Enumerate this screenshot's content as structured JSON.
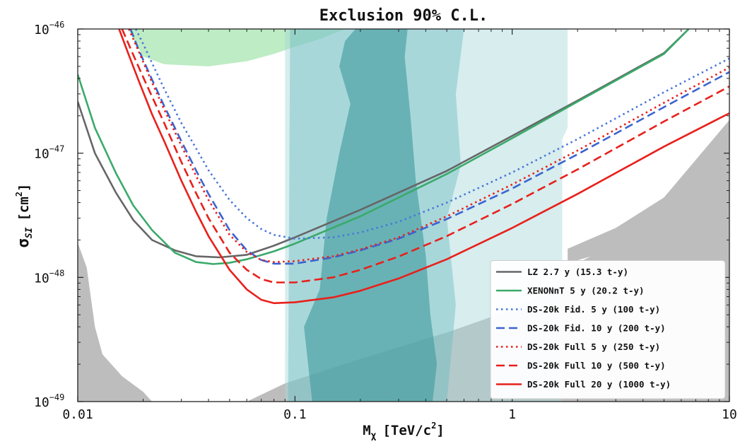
{
  "chart_data": {
    "type": "line",
    "title": "Exclusion 90% C.L.",
    "xlabel": {
      "base": "M",
      "sub": "χ",
      "unit_pre": "[TeV/c",
      "unit_sup": "2",
      "unit_post": "]"
    },
    "ylabel": {
      "base": "σ",
      "sub": "SI",
      "unit_pre": "[cm",
      "unit_sup": "2",
      "unit_post": "]"
    },
    "x_scale": "log",
    "y_scale": "log",
    "xlim": [
      0.01,
      10
    ],
    "ylim": [
      1e-49,
      1e-46
    ],
    "x_ticks": [
      {
        "value": 0.01,
        "label": "0.01"
      },
      {
        "value": 0.1,
        "label": "0.1"
      },
      {
        "value": 1,
        "label": "1"
      },
      {
        "value": 10,
        "label": "10"
      }
    ],
    "y_ticks": [
      {
        "value": 1e-46,
        "base": "10",
        "exp": "−46"
      },
      {
        "value": 1e-47,
        "base": "10",
        "exp": "−47"
      },
      {
        "value": 1e-48,
        "base": "10",
        "exp": "−48"
      },
      {
        "value": 1e-49,
        "base": "10",
        "exp": "−49"
      }
    ],
    "legend_position": "lower-right",
    "series": [
      {
        "name": "LZ 2.7 y (15.3 t-y)",
        "color": "#666666",
        "style": "solid",
        "x": [
          0.01,
          0.012,
          0.015,
          0.018,
          0.022,
          0.028,
          0.035,
          0.045,
          0.06,
          0.08,
          0.1,
          0.2,
          0.5,
          1,
          2,
          5,
          6.5
        ],
        "y": [
          2.6e-47,
          1e-47,
          4.8e-48,
          2.9e-48,
          2e-48,
          1.65e-48,
          1.48e-48,
          1.45e-48,
          1.52e-48,
          1.8e-48,
          2.1e-48,
          3.5e-48,
          7.2e-48,
          1.38e-47,
          2.65e-47,
          6.4e-47,
          1e-46
        ]
      },
      {
        "name": "XENONnT 5 y (20.2 t-y)",
        "color": "#3aaa6a",
        "style": "solid",
        "x": [
          0.01,
          0.012,
          0.015,
          0.018,
          0.022,
          0.028,
          0.035,
          0.042,
          0.05,
          0.06,
          0.08,
          0.1,
          0.2,
          0.5,
          1,
          2,
          5,
          6.5
        ],
        "y": [
          4.3e-47,
          1.6e-47,
          6.9e-48,
          3.8e-48,
          2.4e-48,
          1.58e-48,
          1.33e-48,
          1.28e-48,
          1.31e-48,
          1.4e-48,
          1.62e-48,
          1.87e-48,
          3.1e-48,
          6.8e-48,
          1.32e-47,
          2.6e-47,
          6.3e-47,
          1e-46
        ]
      },
      {
        "name": "DS-20k Fid. 5 y (100 t-y)",
        "color": "#4a78d8",
        "style": "dotted",
        "x": [
          0.0185,
          0.02,
          0.022,
          0.025,
          0.03,
          0.035,
          0.04,
          0.05,
          0.06,
          0.07,
          0.08,
          0.1,
          0.15,
          0.2,
          0.3,
          0.5,
          1,
          2,
          5,
          10
        ],
        "y": [
          1e-46,
          7.6e-47,
          5.3e-47,
          3.3e-47,
          1.75e-47,
          1.1e-47,
          7.3e-48,
          4.2e-48,
          3e-48,
          2.45e-48,
          2.2e-48,
          2.05e-48,
          2.1e-48,
          2.3e-48,
          2.8e-48,
          4e-48,
          7e-48,
          1.3e-47,
          3.1e-47,
          5.8e-47
        ]
      },
      {
        "name": "DS-20k Fid. 10 y (200 t-y)",
        "color": "#3a64d0",
        "style": "dashed",
        "x": [
          0.0175,
          0.019,
          0.022,
          0.025,
          0.03,
          0.035,
          0.04,
          0.05,
          0.06,
          0.07,
          0.08,
          0.1,
          0.15,
          0.2,
          0.3,
          0.5,
          1,
          2,
          5,
          10
        ],
        "y": [
          1e-46,
          6.9e-47,
          3.9e-47,
          2.4e-47,
          1.25e-47,
          7.3e-48,
          4.7e-48,
          2.4e-48,
          1.65e-48,
          1.38e-48,
          1.29e-48,
          1.29e-48,
          1.45e-48,
          1.65e-48,
          2.05e-48,
          2.95e-48,
          5.2e-48,
          9.8e-48,
          2.35e-47,
          4.5e-47
        ]
      },
      {
        "name": "DS-20k Full 5 y (250 t-y)",
        "color": "#e8201b",
        "style": "dotted",
        "x": [
          0.0172,
          0.019,
          0.022,
          0.025,
          0.03,
          0.035,
          0.04,
          0.05,
          0.06,
          0.07,
          0.08,
          0.1,
          0.15,
          0.2,
          0.3,
          0.5,
          1,
          2,
          5,
          10
        ],
        "y": [
          1e-46,
          6.7e-47,
          3.7e-47,
          2.25e-47,
          1.15e-47,
          6.6e-48,
          4.2e-48,
          2.2e-48,
          1.6e-48,
          1.38e-48,
          1.33e-48,
          1.35e-48,
          1.48e-48,
          1.68e-48,
          2.1e-48,
          3.1e-48,
          5.6e-48,
          1.05e-47,
          2.55e-47,
          4.9e-47
        ]
      },
      {
        "name": "DS-20k Full 10 y (500 t-y)",
        "color": "#e8201b",
        "style": "dashed",
        "x": [
          0.016,
          0.018,
          0.02,
          0.022,
          0.025,
          0.03,
          0.035,
          0.04,
          0.05,
          0.06,
          0.07,
          0.08,
          0.1,
          0.15,
          0.2,
          0.3,
          0.5,
          1,
          2,
          5,
          10
        ],
        "y": [
          1e-46,
          6.2e-47,
          4.1e-47,
          2.85e-47,
          1.75e-47,
          8.5e-48,
          4.8e-48,
          3e-48,
          1.58e-48,
          1.15e-48,
          9.7e-49,
          9.1e-49,
          9.1e-49,
          1e-48,
          1.15e-48,
          1.47e-48,
          2.15e-48,
          3.9e-48,
          7.4e-48,
          1.8e-47,
          3.45e-47
        ]
      },
      {
        "name": "DS-20k Full 20 y (1000 t-y)",
        "color": "#e8201b",
        "style": "solid",
        "x": [
          0.0155,
          0.017,
          0.019,
          0.022,
          0.025,
          0.03,
          0.035,
          0.04,
          0.05,
          0.06,
          0.07,
          0.08,
          0.1,
          0.15,
          0.2,
          0.3,
          0.5,
          1,
          2,
          5,
          10
        ],
        "y": [
          1e-46,
          6.5e-47,
          3.9e-47,
          2.05e-47,
          1.25e-47,
          6e-48,
          3.4e-48,
          2.15e-48,
          1.15e-48,
          8e-49,
          6.6e-49,
          6.2e-49,
          6.3e-49,
          6.9e-49,
          7.8e-49,
          9.8e-49,
          1.4e-48,
          2.5e-48,
          4.7e-48,
          1.13e-47,
          2.1e-47
        ]
      }
    ],
    "shaded_regions": [
      {
        "name": "excluded-green-region",
        "color": "#a8e6b0",
        "opacity": 0.75,
        "points": [
          [
            0.017,
            1e-46
          ],
          [
            0.02,
            6e-47
          ],
          [
            0.025,
            5.2e-47
          ],
          [
            0.04,
            5e-47
          ],
          [
            0.06,
            5.5e-47
          ],
          [
            0.08,
            6.3e-47
          ],
          [
            0.1,
            7.2e-47
          ],
          [
            0.13,
            8.3e-47
          ],
          [
            0.17,
            1e-46
          ]
        ]
      },
      {
        "name": "neutrino-fog-gray-region",
        "color": "#bdbdbd",
        "opacity": 1,
        "points": [
          [
            0.01,
            1e-49
          ],
          [
            0.01,
            1.9e-48
          ],
          [
            0.011,
            1.2e-48
          ],
          [
            0.012,
            4e-49
          ],
          [
            0.013,
            2.4e-49
          ],
          [
            0.016,
            1.6e-49
          ],
          [
            0.02,
            1.2e-49
          ],
          [
            0.022,
            1e-49
          ],
          [
            0.06,
            1e-49
          ],
          [
            0.09,
            1.4e-49
          ],
          [
            0.2,
            2.2e-49
          ],
          [
            0.5,
            3.6e-49
          ],
          [
            1,
            5.5e-49
          ],
          [
            1.5,
            8e-49
          ],
          [
            2,
            1.3e-48
          ],
          [
            5,
            3e-48
          ],
          [
            10,
            5.8e-48
          ],
          [
            10,
            1e-49
          ]
        ]
      },
      {
        "name": "gray-upper-band",
        "color": "#bdbdbd",
        "opacity": 1,
        "points": [
          [
            1.8,
            1.7e-48
          ],
          [
            3,
            2.5e-48
          ],
          [
            5,
            4.4e-48
          ],
          [
            10,
            1.85e-47
          ],
          [
            10,
            2.5e-48
          ],
          [
            5,
            2.2e-48
          ],
          [
            1.8,
            1.3e-48
          ]
        ]
      },
      {
        "name": "light-teal-outer-region",
        "color": "#a6d8da",
        "opacity": 0.45,
        "points": [
          [
            0.09,
            1e-49
          ],
          [
            0.09,
            1e-46
          ],
          [
            1.8,
            1e-46
          ],
          [
            1.8,
            1.6e-47
          ],
          [
            1.7,
            1.3e-47
          ],
          [
            1.7,
            1e-49
          ]
        ]
      },
      {
        "name": "mid-teal-region",
        "color": "#6fbcc0",
        "opacity": 0.45,
        "points": [
          [
            0.093,
            1e-49
          ],
          [
            0.095,
            1e-46
          ],
          [
            0.6,
            1e-46
          ],
          [
            0.55,
            3e-47
          ],
          [
            0.58,
            8e-48
          ],
          [
            0.5,
            3e-48
          ],
          [
            0.55,
            6e-49
          ],
          [
            0.5,
            1e-49
          ]
        ]
      },
      {
        "name": "dark-teal-inner-region",
        "color": "#3d9a9c",
        "opacity": 0.6,
        "points": [
          [
            0.12,
            1e-49
          ],
          [
            0.11,
            4e-49
          ],
          [
            0.13,
            8e-49
          ],
          [
            0.14,
            3e-48
          ],
          [
            0.16,
            1e-47
          ],
          [
            0.18,
            2.5e-47
          ],
          [
            0.16,
            5e-47
          ],
          [
            0.17,
            8e-47
          ],
          [
            0.19,
            1e-46
          ],
          [
            0.33,
            1e-46
          ],
          [
            0.32,
            6e-47
          ],
          [
            0.34,
            2e-47
          ],
          [
            0.36,
            6e-48
          ],
          [
            0.4,
            1.5e-48
          ],
          [
            0.42,
            5e-49
          ],
          [
            0.45,
            2e-49
          ],
          [
            0.43,
            1e-49
          ]
        ]
      }
    ]
  }
}
